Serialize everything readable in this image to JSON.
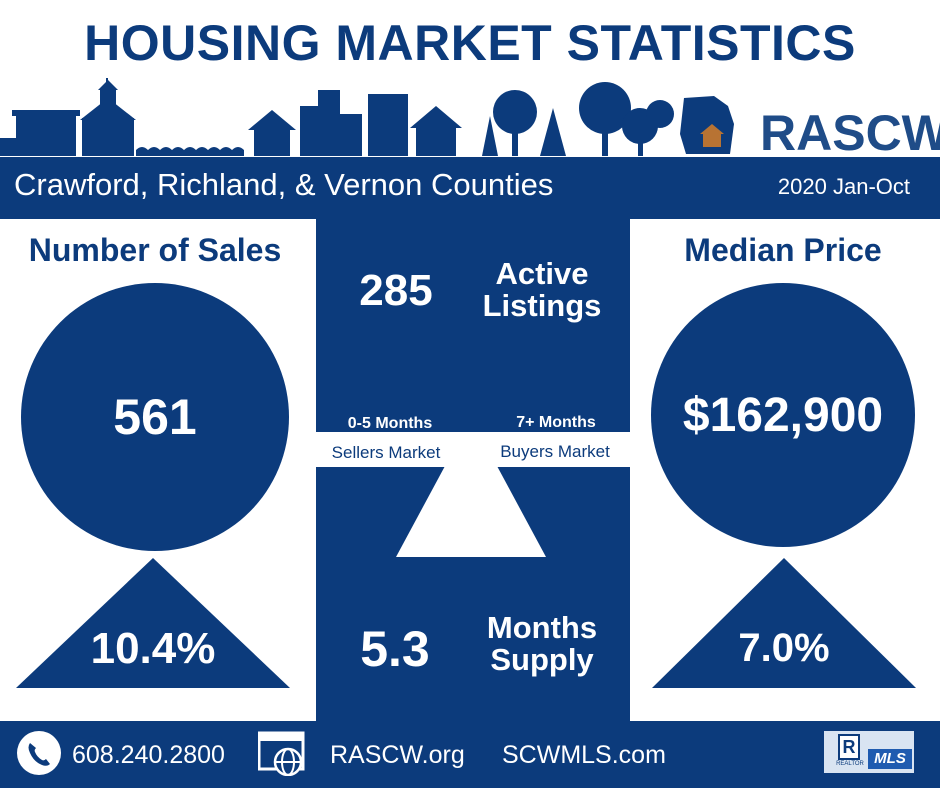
{
  "header": {
    "title": "HOUSING MARKET STATISTICS",
    "logo_text": "RASCW",
    "region": "Crawford, Richland, & Vernon Counties",
    "period": "2020 Jan-Oct"
  },
  "sales": {
    "heading": "Number of Sales",
    "value": "561",
    "change": "10.4%",
    "direction": "up"
  },
  "listings": {
    "value": "285",
    "label_line1": "Active",
    "label_line2": "Listings"
  },
  "market_scale": {
    "sellers_range": "0-5 Months",
    "sellers_label": "Sellers Market",
    "buyers_range": "7+ Months",
    "buyers_label": "Buyers Market"
  },
  "supply": {
    "value": "5.3",
    "label_line1": "Months",
    "label_line2": "Supply"
  },
  "median": {
    "heading": "Median Price",
    "value": "$162,900",
    "change": "7.0%",
    "direction": "up"
  },
  "footer": {
    "phone": "608.240.2800",
    "site1": "RASCW.org",
    "site2": "SCWMLS.com",
    "mls_logo_text": "MLS",
    "realtor_logo_text": "R",
    "realtor_logo_subtext": "REALTOR"
  },
  "colors": {
    "navy": "#0c3b7c",
    "house_brown": "#b87333",
    "white": "#ffffff"
  },
  "icons": [
    "church-icon",
    "house-icon",
    "city-buildings-icon",
    "tree-icon",
    "wisconsin-map-icon",
    "phone-icon",
    "web-browser-icon",
    "realtor-r-icon"
  ]
}
